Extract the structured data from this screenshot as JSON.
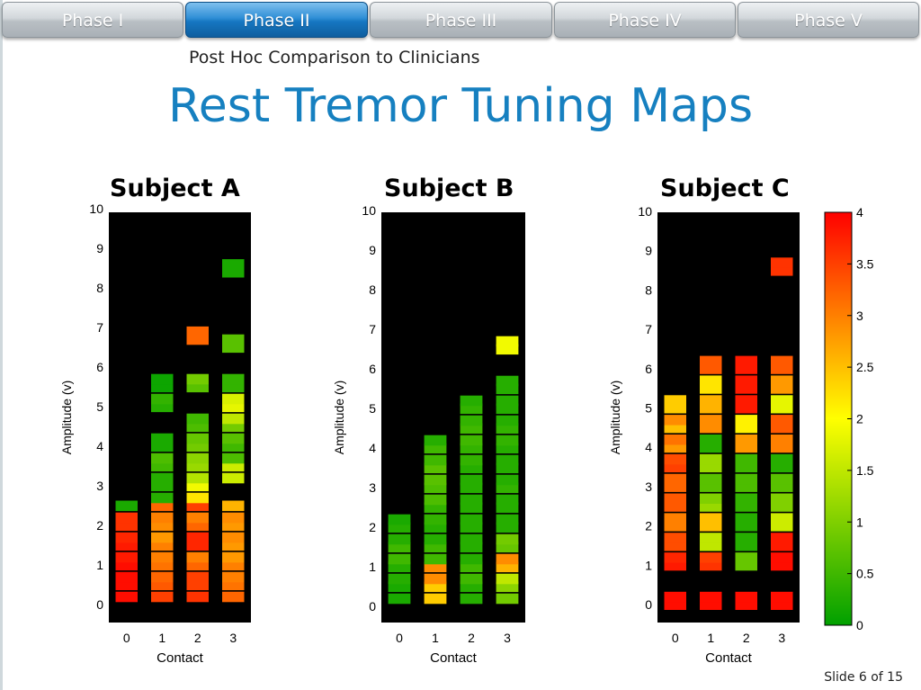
{
  "nav": {
    "tabs": [
      {
        "label": "Phase I",
        "active": false
      },
      {
        "label": "Phase II",
        "active": true
      },
      {
        "label": "Phase III",
        "active": false
      },
      {
        "label": "Phase IV",
        "active": false
      },
      {
        "label": "Phase V",
        "active": false
      }
    ]
  },
  "slide": {
    "subtitle": "Post Hoc Comparison to Clinicians",
    "title": "Rest Tremor Tuning Maps",
    "footer": "Slide  6 of 15"
  },
  "colorbar": {
    "ticks": [
      "0",
      "0.5",
      "1",
      "1.5",
      "2",
      "2.5",
      "3",
      "3.5",
      "4"
    ],
    "min": 0,
    "max": 4,
    "colors": [
      "#00a000",
      "#ffff00",
      "#ff0000"
    ]
  },
  "chart_data": [
    {
      "type": "heatmap",
      "title": "Subject A",
      "xlabel": "Contact",
      "ylabel": "Amplitude (v)",
      "x_ticks": [
        "0",
        "1",
        "2",
        "3"
      ],
      "y_ticks": [
        "0",
        "1",
        "2",
        "3",
        "4",
        "5",
        "6",
        "7",
        "8",
        "9",
        "10"
      ],
      "ylim": [
        0,
        10
      ],
      "columns": [
        {
          "contact": 0,
          "cells": [
            [
              0.2,
              3.9
            ],
            [
              0.5,
              3.9
            ],
            [
              0.7,
              3.9
            ],
            [
              1.0,
              3.9
            ],
            [
              1.2,
              3.8
            ],
            [
              1.5,
              3.8
            ],
            [
              1.7,
              3.7
            ],
            [
              2.0,
              3.6
            ],
            [
              2.2,
              3.6
            ],
            [
              2.5,
              0.2
            ]
          ]
        },
        {
          "contact": 1,
          "cells": [
            [
              0.2,
              3.5
            ],
            [
              0.5,
              3.3
            ],
            [
              0.7,
              3.2
            ],
            [
              1.0,
              3.1
            ],
            [
              1.2,
              3.0
            ],
            [
              1.5,
              3.0
            ],
            [
              1.7,
              2.8
            ],
            [
              2.0,
              2.9
            ],
            [
              2.2,
              3.0
            ],
            [
              2.5,
              3.2
            ],
            [
              2.7,
              0.3
            ],
            [
              3.0,
              0.3
            ],
            [
              3.2,
              0.3
            ],
            [
              3.5,
              0.5
            ],
            [
              3.7,
              0.6
            ],
            [
              4.0,
              0.2
            ],
            [
              4.2,
              0.2
            ],
            [
              5.0,
              0.3
            ],
            [
              5.2,
              0.4
            ],
            [
              5.5,
              0.1
            ],
            [
              5.7,
              0.1
            ]
          ]
        },
        {
          "contact": 2,
          "cells": [
            [
              0.2,
              3.6
            ],
            [
              0.5,
              3.5
            ],
            [
              0.7,
              3.5
            ],
            [
              1.0,
              3.2
            ],
            [
              1.2,
              3.0
            ],
            [
              1.5,
              3.7
            ],
            [
              1.7,
              3.7
            ],
            [
              2.0,
              3.2
            ],
            [
              2.2,
              3.0
            ],
            [
              2.5,
              3.5
            ],
            [
              2.7,
              2.2
            ],
            [
              3.0,
              1.9
            ],
            [
              3.2,
              1.4
            ],
            [
              3.5,
              1.2
            ],
            [
              3.7,
              1.1
            ],
            [
              4.0,
              0.9
            ],
            [
              4.2,
              0.8
            ],
            [
              4.5,
              0.6
            ],
            [
              4.7,
              0.5
            ],
            [
              5.5,
              0.7
            ],
            [
              5.7,
              0.9
            ],
            [
              6.7,
              3.2
            ],
            [
              6.9,
              3.2
            ]
          ]
        },
        {
          "contact": 3,
          "cells": [
            [
              0.2,
              3.2
            ],
            [
              0.5,
              3.1
            ],
            [
              0.7,
              3.0
            ],
            [
              1.0,
              3.0
            ],
            [
              1.2,
              2.8
            ],
            [
              1.5,
              2.8
            ],
            [
              1.7,
              2.9
            ],
            [
              2.0,
              2.8
            ],
            [
              2.2,
              2.9
            ],
            [
              2.5,
              2.6
            ],
            [
              3.2,
              1.6
            ],
            [
              3.5,
              1.6
            ],
            [
              3.7,
              0.6
            ],
            [
              4.0,
              0.5
            ],
            [
              4.2,
              0.7
            ],
            [
              4.5,
              0.9
            ],
            [
              4.7,
              1.5
            ],
            [
              5.0,
              1.8
            ],
            [
              5.2,
              1.7
            ],
            [
              5.5,
              0.4
            ],
            [
              5.7,
              0.4
            ],
            [
              6.5,
              0.7
            ],
            [
              6.7,
              0.7
            ],
            [
              8.4,
              0.2
            ],
            [
              8.6,
              0.2
            ]
          ]
        }
      ]
    },
    {
      "type": "heatmap",
      "title": "Subject B",
      "xlabel": "Contact",
      "ylabel": "Amplitude (v)",
      "x_ticks": [
        "0",
        "1",
        "2",
        "3"
      ],
      "y_ticks": [
        "0",
        "1",
        "2",
        "3",
        "4",
        "5",
        "6",
        "7",
        "8",
        "9",
        "10"
      ],
      "ylim": [
        0,
        10
      ],
      "columns": [
        {
          "contact": 0,
          "cells": [
            [
              0.2,
              0.2
            ],
            [
              0.5,
              0.2
            ],
            [
              0.7,
              0.3
            ],
            [
              1.0,
              0.3
            ],
            [
              1.2,
              0.5
            ],
            [
              1.5,
              0.5
            ],
            [
              1.7,
              0.3
            ],
            [
              2.0,
              0.3
            ],
            [
              2.2,
              0.2
            ]
          ]
        },
        {
          "contact": 1,
          "cells": [
            [
              0.2,
              2.4
            ],
            [
              0.5,
              2.4
            ],
            [
              0.7,
              2.9
            ],
            [
              1.0,
              2.9
            ],
            [
              1.2,
              0.5
            ],
            [
              1.5,
              0.5
            ],
            [
              1.7,
              0.3
            ],
            [
              2.0,
              0.3
            ],
            [
              2.2,
              0.4
            ],
            [
              2.5,
              0.4
            ],
            [
              2.7,
              0.6
            ],
            [
              3.0,
              0.6
            ],
            [
              3.2,
              0.7
            ],
            [
              3.5,
              0.7
            ],
            [
              3.7,
              0.5
            ],
            [
              4.0,
              0.5
            ],
            [
              4.2,
              0.3
            ]
          ]
        },
        {
          "contact": 2,
          "cells": [
            [
              0.2,
              0.3
            ],
            [
              0.5,
              0.3
            ],
            [
              0.7,
              0.5
            ],
            [
              1.0,
              0.5
            ],
            [
              1.2,
              0.3
            ],
            [
              1.5,
              0.3
            ],
            [
              1.7,
              0.3
            ],
            [
              2.0,
              0.3
            ],
            [
              2.2,
              0.3
            ],
            [
              2.5,
              0.3
            ],
            [
              2.7,
              0.3
            ],
            [
              3.0,
              0.3
            ],
            [
              3.2,
              0.3
            ],
            [
              3.5,
              0.3
            ],
            [
              3.7,
              0.4
            ],
            [
              4.0,
              0.4
            ],
            [
              4.2,
              0.5
            ],
            [
              4.5,
              0.5
            ],
            [
              4.7,
              0.4
            ],
            [
              5.0,
              0.4
            ],
            [
              5.2,
              0.3
            ]
          ]
        },
        {
          "contact": 3,
          "cells": [
            [
              0.2,
              0.9
            ],
            [
              0.5,
              1.1
            ],
            [
              0.7,
              1.5
            ],
            [
              1.0,
              2.6
            ],
            [
              1.2,
              2.9
            ],
            [
              1.5,
              0.8
            ],
            [
              1.7,
              0.9
            ],
            [
              2.0,
              0.3
            ],
            [
              2.2,
              0.3
            ],
            [
              2.5,
              0.3
            ],
            [
              2.7,
              0.3
            ],
            [
              3.0,
              0.4
            ],
            [
              3.2,
              0.3
            ],
            [
              3.5,
              0.3
            ],
            [
              3.7,
              0.3
            ],
            [
              4.0,
              0.3
            ],
            [
              4.2,
              0.4
            ],
            [
              4.5,
              0.4
            ],
            [
              4.7,
              0.3
            ],
            [
              5.0,
              0.3
            ],
            [
              5.2,
              0.3
            ],
            [
              5.5,
              0.3
            ],
            [
              5.7,
              0.3
            ],
            [
              6.5,
              1.9
            ],
            [
              6.7,
              1.9
            ]
          ]
        }
      ]
    },
    {
      "type": "heatmap",
      "title": "Subject C",
      "xlabel": "Contact",
      "ylabel": "Amplitude (v)",
      "x_ticks": [
        "0",
        "1",
        "2",
        "3"
      ],
      "y_ticks": [
        "0",
        "1",
        "2",
        "3",
        "4",
        "5",
        "6",
        "7",
        "8",
        "9",
        "10"
      ],
      "ylim": [
        0,
        10
      ],
      "columns": [
        {
          "contact": 0,
          "cells": [
            [
              0.0,
              3.9
            ],
            [
              0.2,
              3.9
            ],
            [
              1.0,
              3.8
            ],
            [
              1.2,
              3.7
            ],
            [
              1.5,
              3.4
            ],
            [
              1.7,
              3.4
            ],
            [
              2.0,
              3.0
            ],
            [
              2.2,
              3.0
            ],
            [
              2.5,
              3.3
            ],
            [
              2.7,
              3.3
            ],
            [
              3.0,
              3.2
            ],
            [
              3.2,
              3.2
            ],
            [
              3.5,
              3.5
            ],
            [
              3.7,
              3.4
            ],
            [
              4.0,
              2.8
            ],
            [
              4.2,
              3.1
            ],
            [
              4.5,
              2.5
            ],
            [
              4.7,
              2.9
            ],
            [
              5.0,
              2.4
            ],
            [
              5.2,
              2.4
            ]
          ]
        },
        {
          "contact": 1,
          "cells": [
            [
              0.0,
              3.9
            ],
            [
              0.2,
              3.9
            ],
            [
              1.0,
              3.6
            ],
            [
              1.2,
              3.5
            ],
            [
              1.5,
              1.5
            ],
            [
              1.7,
              1.5
            ],
            [
              2.0,
              2.5
            ],
            [
              2.2,
              2.5
            ],
            [
              2.5,
              1.2
            ],
            [
              2.7,
              1.0
            ],
            [
              3.0,
              0.7
            ],
            [
              3.2,
              0.7
            ],
            [
              3.5,
              1.2
            ],
            [
              3.7,
              1.2
            ],
            [
              4.0,
              0.3
            ],
            [
              4.2,
              0.3
            ],
            [
              4.5,
              2.9
            ],
            [
              4.7,
              2.9
            ],
            [
              5.0,
              2.6
            ],
            [
              5.2,
              2.6
            ],
            [
              5.5,
              2.2
            ],
            [
              5.7,
              2.2
            ],
            [
              6.0,
              3.3
            ],
            [
              6.2,
              3.3
            ]
          ]
        },
        {
          "contact": 2,
          "cells": [
            [
              0.0,
              3.9
            ],
            [
              0.2,
              3.9
            ],
            [
              1.0,
              0.8
            ],
            [
              1.2,
              0.8
            ],
            [
              1.5,
              0.3
            ],
            [
              1.7,
              0.3
            ],
            [
              2.0,
              0.3
            ],
            [
              2.2,
              0.3
            ],
            [
              2.5,
              0.4
            ],
            [
              2.7,
              0.4
            ],
            [
              3.0,
              0.6
            ],
            [
              3.2,
              0.6
            ],
            [
              3.5,
              0.5
            ],
            [
              3.7,
              0.5
            ],
            [
              4.0,
              2.8
            ],
            [
              4.2,
              2.8
            ],
            [
              4.5,
              2.1
            ],
            [
              4.7,
              2.1
            ],
            [
              5.0,
              3.8
            ],
            [
              5.2,
              3.8
            ],
            [
              5.5,
              3.8
            ],
            [
              5.7,
              3.8
            ],
            [
              6.0,
              3.8
            ],
            [
              6.2,
              3.8
            ]
          ]
        },
        {
          "contact": 3,
          "cells": [
            [
              0.0,
              3.9
            ],
            [
              0.2,
              3.9
            ],
            [
              1.0,
              3.9
            ],
            [
              1.2,
              3.9
            ],
            [
              1.5,
              3.8
            ],
            [
              1.7,
              3.8
            ],
            [
              2.0,
              1.6
            ],
            [
              2.2,
              1.6
            ],
            [
              2.5,
              1.0
            ],
            [
              2.7,
              1.0
            ],
            [
              3.0,
              0.7
            ],
            [
              3.2,
              0.7
            ],
            [
              3.5,
              0.3
            ],
            [
              3.7,
              0.3
            ],
            [
              4.0,
              3.0
            ],
            [
              4.2,
              3.0
            ],
            [
              4.5,
              3.3
            ],
            [
              4.7,
              3.3
            ],
            [
              5.0,
              1.8
            ],
            [
              5.2,
              1.8
            ],
            [
              5.5,
              2.8
            ],
            [
              5.7,
              2.8
            ],
            [
              6.0,
              3.3
            ],
            [
              6.2,
              3.3
            ],
            [
              8.5,
              3.6
            ],
            [
              8.7,
              3.6
            ]
          ]
        }
      ]
    }
  ]
}
